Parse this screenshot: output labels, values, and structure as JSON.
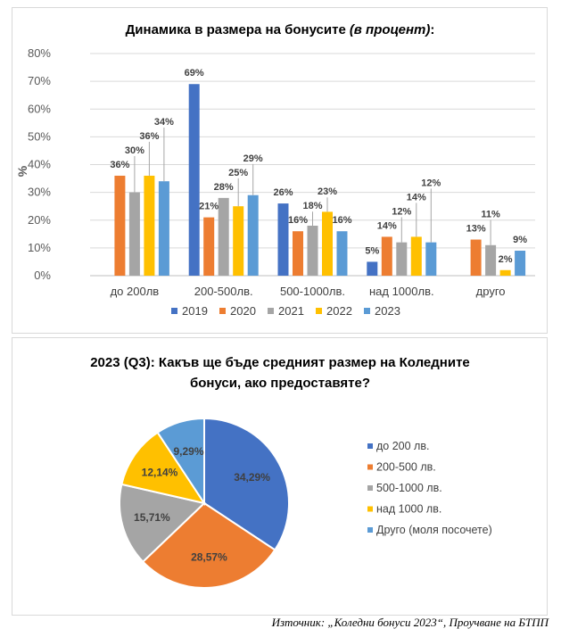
{
  "chart_data": [
    {
      "type": "bar",
      "title": "Динамика в размера на бонусите",
      "title_italic": "(в процент)",
      "title_suffix": ":",
      "ylabel": "%",
      "ylim": [
        0,
        80
      ],
      "yticks": [
        "0%",
        "10%",
        "20%",
        "30%",
        "40%",
        "50%",
        "60%",
        "70%",
        "80%"
      ],
      "grid": true,
      "legend_position": "bottom",
      "categories": [
        "до 200лв",
        "200-500лв.",
        "500-1000лв.",
        "над 1000лв.",
        "друго"
      ],
      "series": [
        {
          "name": "2019",
          "color": "#4472C4",
          "values": [
            null,
            69,
            26,
            5,
            null
          ],
          "labels": [
            "",
            "69%",
            "26%",
            "5%",
            ""
          ]
        },
        {
          "name": "2020",
          "color": "#ED7D31",
          "values": [
            36,
            21,
            16,
            14,
            13
          ],
          "labels": [
            "36%",
            "21%",
            "16%",
            "14%",
            "13%"
          ]
        },
        {
          "name": "2021",
          "color": "#A5A5A5",
          "values": [
            30,
            28,
            18,
            12,
            11
          ],
          "labels": [
            "30%",
            "28%",
            "18%",
            "12%",
            "11%"
          ]
        },
        {
          "name": "2022",
          "color": "#FFC000",
          "values": [
            36,
            25,
            23,
            14,
            2
          ],
          "labels": [
            "36%",
            "25%",
            "23%",
            "14%",
            "2%"
          ]
        },
        {
          "name": "2023",
          "color": "#5B9BD5",
          "values": [
            34,
            29,
            16,
            12,
            9
          ],
          "labels": [
            "34%",
            "29%",
            "16%",
            "12%",
            "9%"
          ]
        }
      ]
    },
    {
      "type": "pie",
      "title_line1": "2023 (Q3): Какъв ще бъде средният размер на Коледните",
      "title_line2": "бонуси, ако предоставяте?",
      "legend_position": "right",
      "slices": [
        {
          "name": "до 200 лв.",
          "value": 34.29,
          "label": "34,29%",
          "color": "#4472C4"
        },
        {
          "name": "200-500 лв.",
          "value": 28.57,
          "label": "28,57%",
          "color": "#ED7D31"
        },
        {
          "name": "500-1000 лв.",
          "value": 15.71,
          "label": "15,71%",
          "color": "#A5A5A5"
        },
        {
          "name": "над 1000 лв.",
          "value": 12.14,
          "label": "12,14%",
          "color": "#FFC000"
        },
        {
          "name": "Друго (моля посочете)",
          "value": 9.29,
          "label": "9,29%",
          "color": "#5B9BD5"
        }
      ]
    }
  ],
  "source_text": "Източник: „Коледни бонуси 2023“, Проучване на БТПП"
}
